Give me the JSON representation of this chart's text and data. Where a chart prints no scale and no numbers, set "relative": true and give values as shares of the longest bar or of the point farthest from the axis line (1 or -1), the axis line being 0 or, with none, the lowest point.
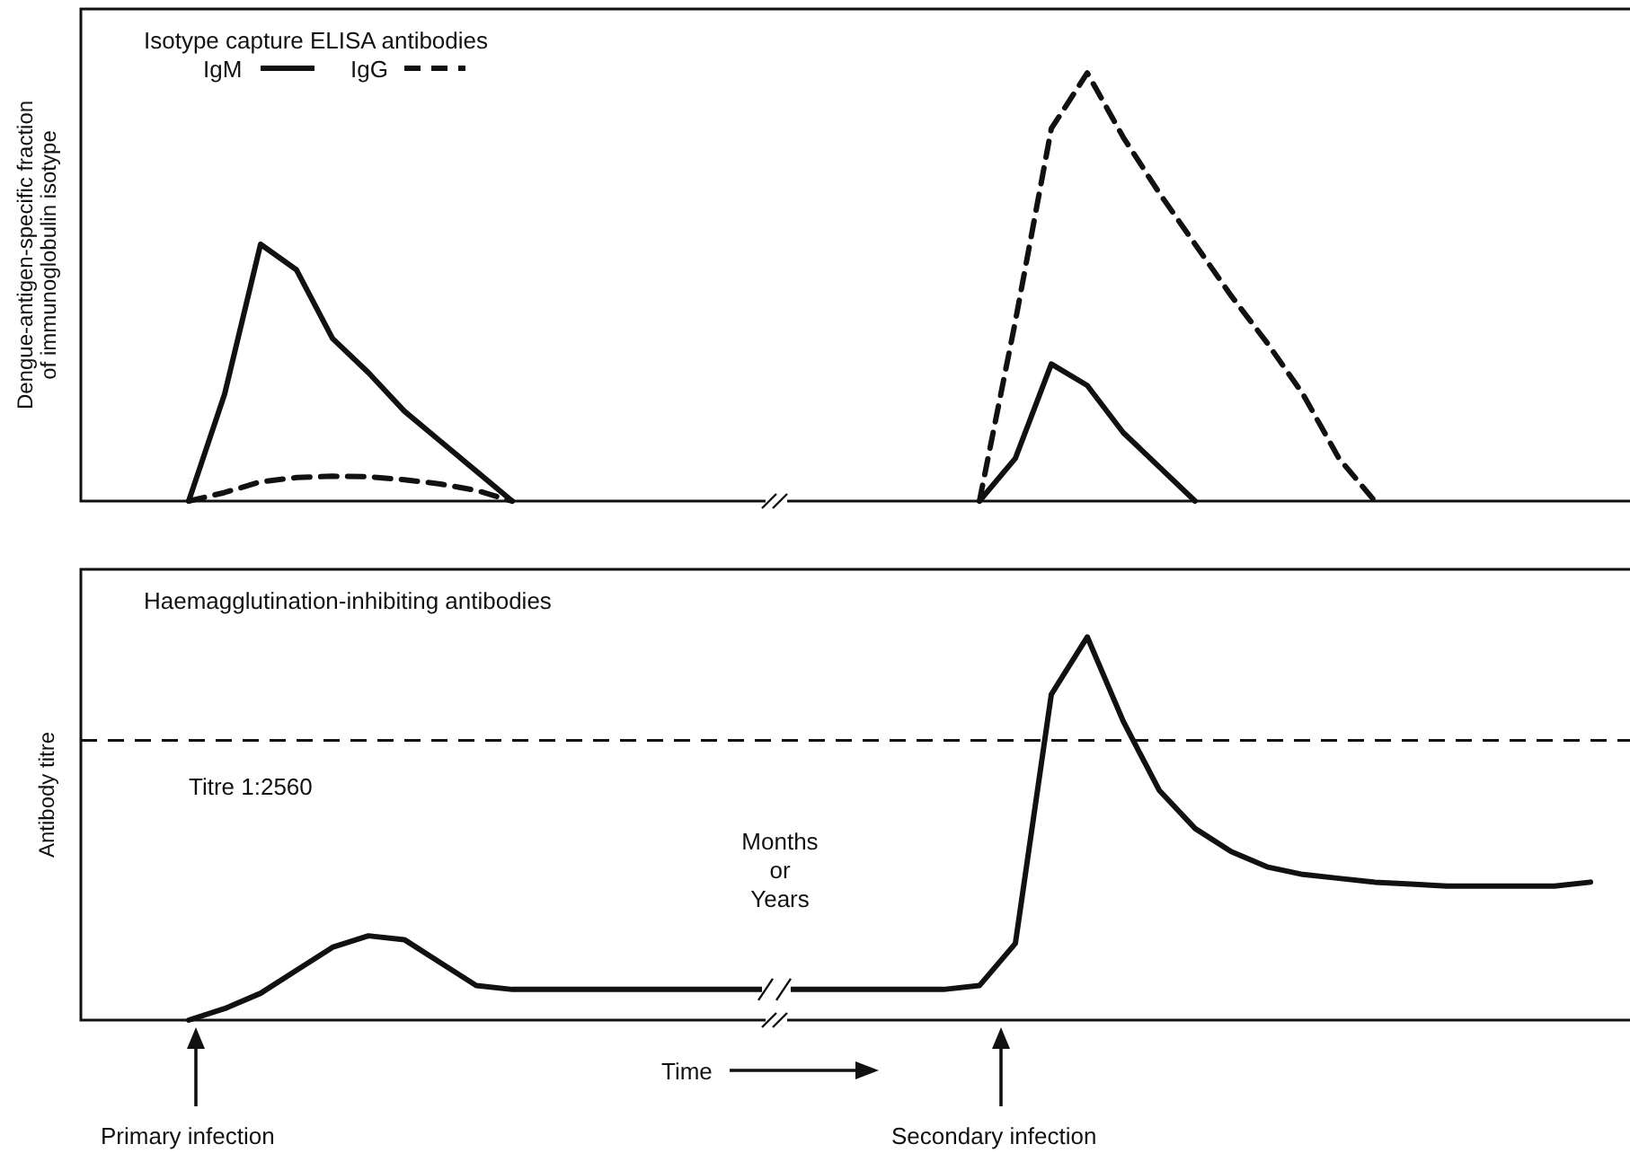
{
  "chart_data": [
    {
      "type": "line",
      "relative": true,
      "ylabel": "Dengue-antigen-specific fraction of immunoglobulin isotype",
      "legend": "top left",
      "legend_title": "Isotype capture ELISA antibodies",
      "categories": [
        null,
        null,
        null,
        null,
        null,
        null,
        null,
        null,
        null,
        null,
        null,
        null,
        null,
        null,
        null,
        null,
        null,
        null,
        null,
        null,
        null,
        null,
        null,
        null,
        null,
        null,
        null,
        null,
        null,
        null,
        null,
        null,
        null,
        null,
        null,
        null,
        null,
        null,
        null,
        null,
        null,
        null,
        null,
        null
      ],
      "series": [
        {
          "name": "IgM",
          "color": "#111111",
          "line_style": "solid",
          "values": [
            null,
            null,
            null,
            0,
            0.25,
            0.6,
            0.54,
            0.38,
            0.3,
            0.21,
            0.14,
            0.07,
            0,
            null,
            null,
            null,
            null,
            null,
            null,
            null,
            null,
            null,
            null,
            null,
            null,
            null,
            null,
            null,
            null,
            null,
            null,
            null,
            null,
            null,
            null,
            null,
            null,
            null,
            null,
            null,
            null,
            null,
            null,
            null
          ]
        },
        {
          "name": "IgG",
          "color": "#111111",
          "line_style": "dashed",
          "values": [
            null,
            null,
            null,
            0,
            0.02,
            0.045,
            0.055,
            0.058,
            0.057,
            0.05,
            0.04,
            0.025,
            0,
            null,
            null,
            null,
            null,
            null,
            null,
            null,
            null,
            null,
            null,
            null,
            null,
            null,
            null,
            null,
            null,
            null,
            null,
            null,
            null,
            null,
            null,
            null,
            null,
            null,
            null,
            null,
            null,
            null,
            null,
            null
          ]
        },
        {
          "color": "#111111",
          "line_style": "solid",
          "values": [
            null,
            null,
            null,
            null,
            null,
            null,
            null,
            null,
            null,
            null,
            null,
            null,
            null,
            null,
            null,
            null,
            null,
            null,
            null,
            null,
            null,
            null,
            null,
            null,
            null,
            0,
            0.1,
            0.32,
            0.27,
            0.16,
            0.08,
            0,
            null,
            null,
            null,
            null,
            null,
            null,
            null,
            null,
            null,
            null,
            null,
            null
          ]
        },
        {
          "color": "#111111",
          "line_style": "dashed",
          "values": [
            null,
            null,
            null,
            null,
            null,
            null,
            null,
            null,
            null,
            null,
            null,
            null,
            null,
            null,
            null,
            null,
            null,
            null,
            null,
            null,
            null,
            null,
            null,
            null,
            null,
            0,
            0.42,
            0.87,
            1.0,
            0.85,
            0.72,
            0.6,
            0.48,
            0.37,
            0.25,
            0.1,
            0,
            null,
            null,
            null,
            null,
            null,
            null,
            null
          ]
        }
      ]
    },
    {
      "type": "line",
      "relative": true,
      "title": "Haemagglutination-inhibiting antibodies",
      "ylabel": "Antibody titre",
      "categories": [
        null,
        null,
        null,
        null,
        null,
        null,
        null,
        null,
        null,
        null,
        null,
        null,
        null,
        null,
        null,
        null,
        null,
        null,
        null,
        null,
        null,
        null,
        null,
        null,
        null,
        null,
        null,
        null,
        null,
        null,
        null,
        null,
        null,
        null,
        null,
        null,
        null,
        null,
        null,
        null,
        null,
        null,
        null,
        null
      ],
      "series": [
        {
          "color": "#111111",
          "line_style": "solid",
          "values": [
            null,
            null,
            null,
            0,
            0.03,
            0.07,
            0.13,
            0.19,
            0.22,
            0.21,
            0.15,
            0.09,
            0.08,
            0.08,
            0.08,
            0.08,
            0.08,
            0.08,
            0.08,
            0.08,
            0.08,
            0.08,
            0.08,
            0.08,
            0.08,
            0.09,
            0.2,
            0.85,
            1.0,
            0.78,
            0.6,
            0.5,
            0.44,
            0.4,
            0.38,
            0.37,
            0.36,
            0.355,
            0.35,
            0.35,
            0.35,
            0.35,
            0.36,
            null
          ]
        }
      ],
      "ref_lines": [
        {
          "axis": "y",
          "value": 0.73,
          "label": "Titre 1:2560",
          "line_style": "dashed",
          "color": "#111111"
        }
      ],
      "annotations": [
        "Primary infection",
        "Secondary infection",
        "Time",
        "Months or Years"
      ]
    }
  ]
}
